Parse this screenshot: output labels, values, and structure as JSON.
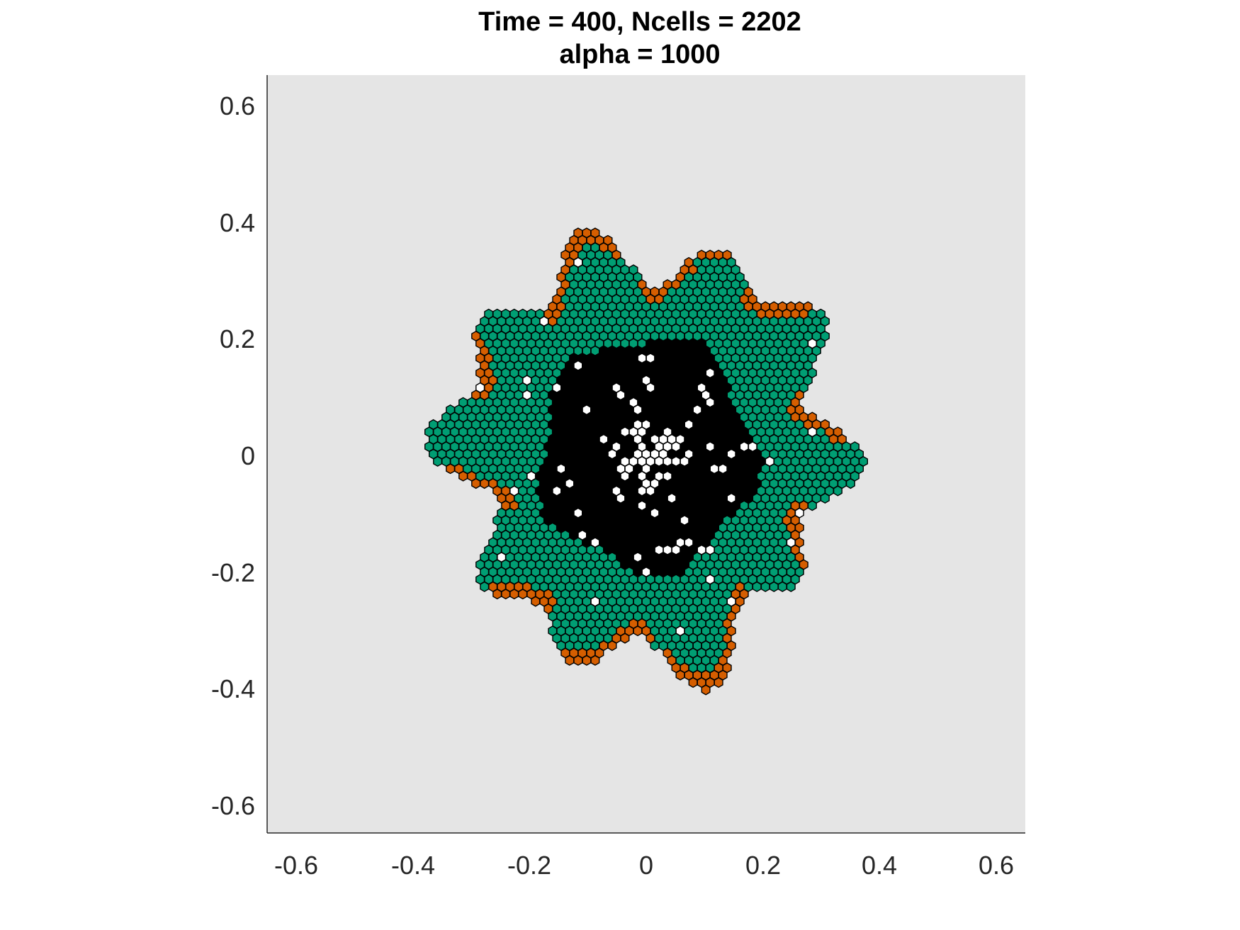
{
  "chart_data": {
    "type": "scatter",
    "title_lines": [
      "Time = 400, Ncells = 2202",
      "alpha = 1000"
    ],
    "xlim": [
      -0.65,
      0.65
    ],
    "ylim": [
      -0.65,
      0.65
    ],
    "x_ticks": [
      "-0.6",
      "-0.4",
      "-0.2",
      "0",
      "0.2",
      "0.4",
      "0.6"
    ],
    "y_ticks": [
      "0.6",
      "0.4",
      "0.2",
      "0",
      "-0.2",
      "-0.4",
      "-0.6"
    ],
    "grid": false,
    "lattice": "hexagonal cells",
    "colors": {
      "axes_background": "#e5e5e5",
      "living_cell": "#009e73",
      "edge_cell": "#d55e00",
      "necrotic_cell": "#000000",
      "empty_site": "#ffffff",
      "cell_outline": "#000000"
    },
    "series": [
      {
        "name": "",
        "color": "#009e73",
        "role": "proliferating"
      },
      {
        "name": "",
        "color": "#d55e00",
        "role": "boundary"
      },
      {
        "name": "",
        "color": "#000000",
        "role": "necrotic core"
      },
      {
        "name": "",
        "color": "#ffffff",
        "role": "empty"
      }
    ]
  }
}
